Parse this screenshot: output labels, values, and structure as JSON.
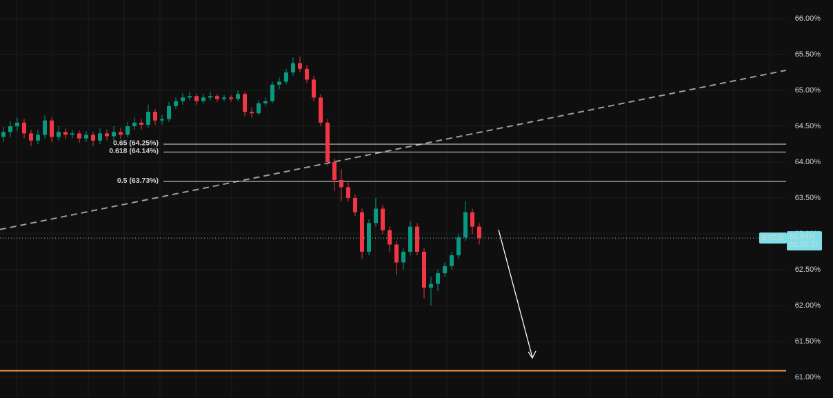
{
  "chart_data": {
    "type": "candlestick",
    "ylim": [
      60.71,
      66.26
    ],
    "yticks": [
      {
        "value": 66,
        "label": "66.00%"
      },
      {
        "value": 65.5,
        "label": "65.50%"
      },
      {
        "value": 65,
        "label": "65.00%"
      },
      {
        "value": 64.5,
        "label": "64.50%"
      },
      {
        "value": 64,
        "label": "64.00%"
      },
      {
        "value": 63.5,
        "label": "63.50%"
      },
      {
        "value": 63,
        "label": "63.00%"
      },
      {
        "value": 62.5,
        "label": "62.50%"
      },
      {
        "value": 62,
        "label": "62.00%"
      },
      {
        "value": 61.5,
        "label": "61.50%"
      },
      {
        "value": 61,
        "label": "61.00%"
      }
    ],
    "grid": true,
    "up_color": "#089981",
    "down_color": "#f23645",
    "candles": [
      [
        64.35,
        64.49,
        64.28,
        64.42
      ],
      [
        64.42,
        64.57,
        64.35,
        64.5
      ],
      [
        64.5,
        64.62,
        64.43,
        64.55
      ],
      [
        64.55,
        64.6,
        64.33,
        64.4
      ],
      [
        64.4,
        64.45,
        64.22,
        64.3
      ],
      [
        64.3,
        64.45,
        64.25,
        64.38
      ],
      [
        64.38,
        64.65,
        64.33,
        64.58
      ],
      [
        64.58,
        64.62,
        64.28,
        64.35
      ],
      [
        64.35,
        64.5,
        64.3,
        64.42
      ],
      [
        64.42,
        64.47,
        64.32,
        64.38
      ],
      [
        64.38,
        64.45,
        64.33,
        64.4
      ],
      [
        64.4,
        64.44,
        64.27,
        64.33
      ],
      [
        64.33,
        64.43,
        64.28,
        64.38
      ],
      [
        64.38,
        64.42,
        64.22,
        64.3
      ],
      [
        64.3,
        64.47,
        64.25,
        64.4
      ],
      [
        64.4,
        64.45,
        64.3,
        64.36
      ],
      [
        64.36,
        64.5,
        64.3,
        64.42
      ],
      [
        64.42,
        64.48,
        64.32,
        64.38
      ],
      [
        64.38,
        64.56,
        64.34,
        64.5
      ],
      [
        64.5,
        64.62,
        64.45,
        64.55
      ],
      [
        64.55,
        64.6,
        64.45,
        64.52
      ],
      [
        64.52,
        64.8,
        64.48,
        64.7
      ],
      [
        64.7,
        64.74,
        64.52,
        64.58
      ],
      [
        64.58,
        64.66,
        64.52,
        64.6
      ],
      [
        64.6,
        64.84,
        64.56,
        64.78
      ],
      [
        64.78,
        64.9,
        64.74,
        64.85
      ],
      [
        64.85,
        64.96,
        64.8,
        64.9
      ],
      [
        64.9,
        64.98,
        64.86,
        64.92
      ],
      [
        64.92,
        64.95,
        64.8,
        64.85
      ],
      [
        64.85,
        64.95,
        64.82,
        64.9
      ],
      [
        64.9,
        64.98,
        64.86,
        64.92
      ],
      [
        64.92,
        64.95,
        64.84,
        64.88
      ],
      [
        64.88,
        64.94,
        64.85,
        64.9
      ],
      [
        64.9,
        64.93,
        64.84,
        64.88
      ],
      [
        64.88,
        65.0,
        64.85,
        64.95
      ],
      [
        64.95,
        64.98,
        64.64,
        64.7
      ],
      [
        64.7,
        64.76,
        64.62,
        64.68
      ],
      [
        64.68,
        64.86,
        64.65,
        64.82
      ],
      [
        64.82,
        64.9,
        64.78,
        64.85
      ],
      [
        64.85,
        65.12,
        64.82,
        65.08
      ],
      [
        65.08,
        65.18,
        65.02,
        65.12
      ],
      [
        65.12,
        65.3,
        65.08,
        65.25
      ],
      [
        65.25,
        65.46,
        65.2,
        65.38
      ],
      [
        65.38,
        65.47,
        65.25,
        65.3
      ],
      [
        65.3,
        65.35,
        65.1,
        65.15
      ],
      [
        65.15,
        65.2,
        64.85,
        64.9
      ],
      [
        64.9,
        64.95,
        64.5,
        64.55
      ],
      [
        64.55,
        64.6,
        63.95,
        64.0
      ],
      [
        64.0,
        64.05,
        63.6,
        63.75
      ],
      [
        63.75,
        63.9,
        63.45,
        63.65
      ],
      [
        63.65,
        63.72,
        63.45,
        63.5
      ],
      [
        63.5,
        63.55,
        63.25,
        63.3
      ],
      [
        63.3,
        63.35,
        62.65,
        62.75
      ],
      [
        62.75,
        63.2,
        62.7,
        63.15
      ],
      [
        63.15,
        63.5,
        63.1,
        63.35
      ],
      [
        63.35,
        63.4,
        63.0,
        63.05
      ],
      [
        63.05,
        63.1,
        62.75,
        62.85
      ],
      [
        62.85,
        62.9,
        62.42,
        62.6
      ],
      [
        62.6,
        62.8,
        62.5,
        62.75
      ],
      [
        62.75,
        63.18,
        62.7,
        63.1
      ],
      [
        63.1,
        63.15,
        62.7,
        62.75
      ],
      [
        62.75,
        62.8,
        62.1,
        62.25
      ],
      [
        62.25,
        62.4,
        62.0,
        62.3
      ],
      [
        62.3,
        62.5,
        62.2,
        62.45
      ],
      [
        62.45,
        62.6,
        62.4,
        62.55
      ],
      [
        62.55,
        62.75,
        62.5,
        62.7
      ],
      [
        62.7,
        63.0,
        62.65,
        62.95
      ],
      [
        62.95,
        63.45,
        62.9,
        63.3
      ],
      [
        63.3,
        63.35,
        63.0,
        63.1
      ],
      [
        63.1,
        63.15,
        62.85,
        62.94
      ]
    ],
    "fib_levels": [
      {
        "value": 64.25,
        "label": "0.65 (64.25%)"
      },
      {
        "value": 64.14,
        "label": "0.618 (64.14%)"
      },
      {
        "value": 63.73,
        "label": "0.5 (63.73%)"
      }
    ],
    "trendline": {
      "start": 63.06,
      "end": 65.28,
      "color": "#9e9e9e"
    },
    "support_line": {
      "value": 61.09,
      "color": "#ff9a4d"
    },
    "price_tag": {
      "symbol": "BTC.D",
      "value": 62.94,
      "value_label": "62.94%",
      "countdown": "02:00:27",
      "color": "#7fdfe6"
    }
  }
}
